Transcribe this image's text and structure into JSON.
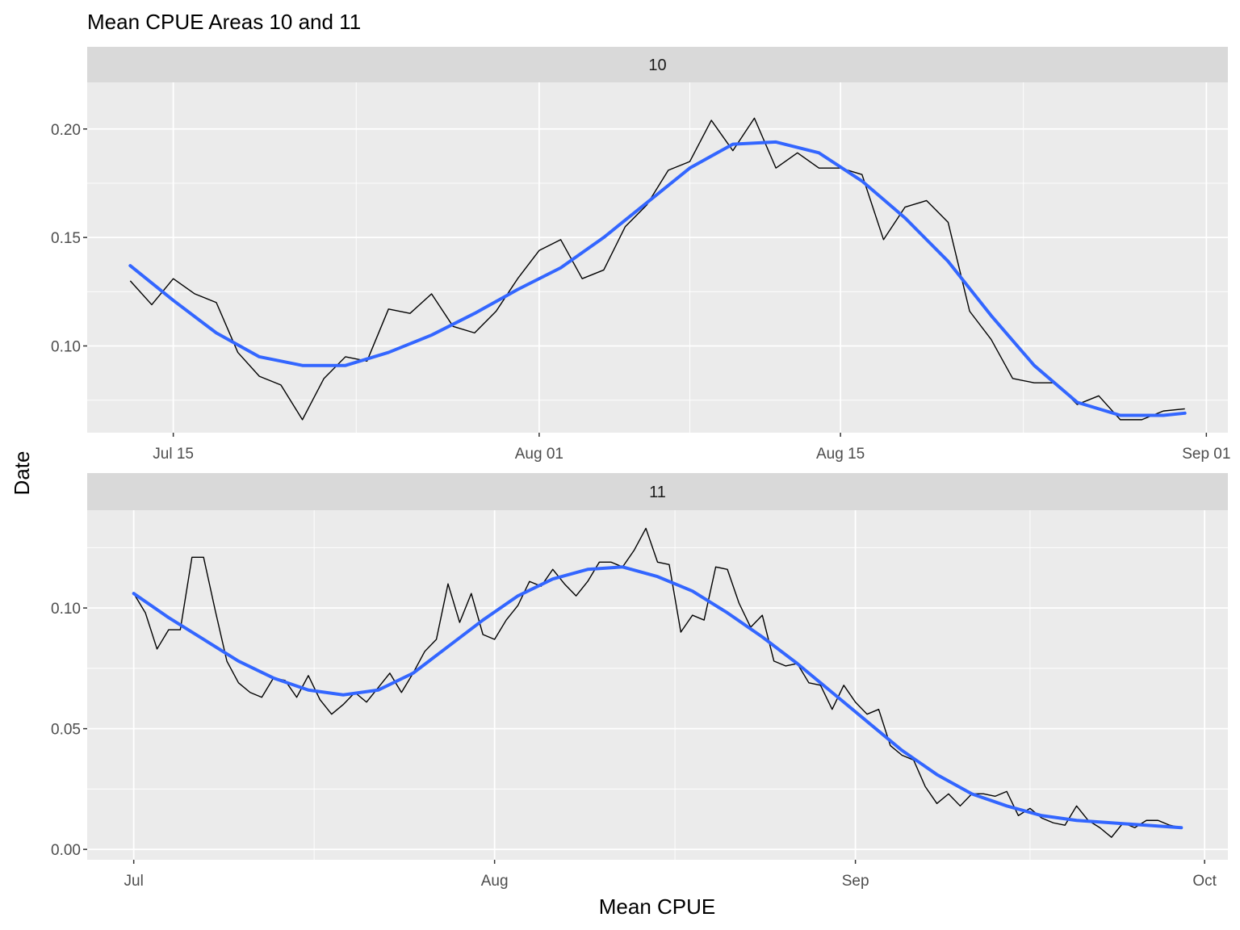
{
  "chart_data": {
    "type": "line",
    "title": "Mean CPUE Areas 10 and 11",
    "xlabel": "Mean CPUE",
    "ylabel": "Date",
    "grid": true,
    "colors": {
      "panel_bg": "#ebebeb",
      "strip_bg": "#d9d9d9",
      "grid": "#ffffff",
      "raw_line": "#000000",
      "smooth_line": "#3366ff"
    },
    "panels": [
      {
        "label": "10",
        "xlim": [
          "2019-07-11",
          "2019-09-02"
        ],
        "ylim": [
          0.06,
          0.2215
        ],
        "xticks": [
          {
            "date": "2019-07-15",
            "label": "Jul 15"
          },
          {
            "date": "2019-08-01",
            "label": "Aug 01"
          },
          {
            "date": "2019-08-15",
            "label": "Aug 15"
          },
          {
            "date": "2019-09-01",
            "label": "Sep 01"
          }
        ],
        "yticks": [
          {
            "value": 0.1,
            "label": "0.10"
          },
          {
            "value": 0.15,
            "label": "0.15"
          },
          {
            "value": 0.2,
            "label": "0.20"
          }
        ],
        "series": [
          {
            "role": "raw",
            "points": [
              [
                "2019-07-13",
                0.13
              ],
              [
                "2019-07-14",
                0.119
              ],
              [
                "2019-07-15",
                0.131
              ],
              [
                "2019-07-16",
                0.124
              ],
              [
                "2019-07-17",
                0.12
              ],
              [
                "2019-07-18",
                0.097
              ],
              [
                "2019-07-19",
                0.086
              ],
              [
                "2019-07-20",
                0.082
              ],
              [
                "2019-07-21",
                0.066
              ],
              [
                "2019-07-22",
                0.085
              ],
              [
                "2019-07-23",
                0.095
              ],
              [
                "2019-07-24",
                0.093
              ],
              [
                "2019-07-25",
                0.117
              ],
              [
                "2019-07-26",
                0.115
              ],
              [
                "2019-07-27",
                0.124
              ],
              [
                "2019-07-28",
                0.109
              ],
              [
                "2019-07-29",
                0.106
              ],
              [
                "2019-07-30",
                0.116
              ],
              [
                "2019-07-31",
                0.131
              ],
              [
                "2019-08-01",
                0.144
              ],
              [
                "2019-08-02",
                0.149
              ],
              [
                "2019-08-03",
                0.131
              ],
              [
                "2019-08-04",
                0.135
              ],
              [
                "2019-08-05",
                0.155
              ],
              [
                "2019-08-06",
                0.165
              ],
              [
                "2019-08-07",
                0.181
              ],
              [
                "2019-08-08",
                0.185
              ],
              [
                "2019-08-09",
                0.204
              ],
              [
                "2019-08-10",
                0.19
              ],
              [
                "2019-08-11",
                0.205
              ],
              [
                "2019-08-12",
                0.182
              ],
              [
                "2019-08-13",
                0.189
              ],
              [
                "2019-08-14",
                0.182
              ],
              [
                "2019-08-15",
                0.182
              ],
              [
                "2019-08-16",
                0.179
              ],
              [
                "2019-08-17",
                0.149
              ],
              [
                "2019-08-18",
                0.164
              ],
              [
                "2019-08-19",
                0.167
              ],
              [
                "2019-08-20",
                0.157
              ],
              [
                "2019-08-21",
                0.116
              ],
              [
                "2019-08-22",
                0.103
              ],
              [
                "2019-08-23",
                0.085
              ],
              [
                "2019-08-24",
                0.083
              ],
              [
                "2019-08-25",
                0.083
              ],
              [
                "2019-08-26",
                0.073
              ],
              [
                "2019-08-27",
                0.077
              ],
              [
                "2019-08-28",
                0.066
              ],
              [
                "2019-08-29",
                0.066
              ],
              [
                "2019-08-30",
                0.07
              ],
              [
                "2019-08-31",
                0.071
              ]
            ]
          },
          {
            "role": "smooth",
            "points": [
              [
                "2019-07-13",
                0.137
              ],
              [
                "2019-07-15",
                0.121
              ],
              [
                "2019-07-17",
                0.106
              ],
              [
                "2019-07-19",
                0.095
              ],
              [
                "2019-07-21",
                0.091
              ],
              [
                "2019-07-23",
                0.091
              ],
              [
                "2019-07-25",
                0.097
              ],
              [
                "2019-07-27",
                0.105
              ],
              [
                "2019-07-29",
                0.115
              ],
              [
                "2019-07-31",
                0.126
              ],
              [
                "2019-08-02",
                0.136
              ],
              [
                "2019-08-04",
                0.15
              ],
              [
                "2019-08-06",
                0.166
              ],
              [
                "2019-08-08",
                0.182
              ],
              [
                "2019-08-10",
                0.193
              ],
              [
                "2019-08-12",
                0.194
              ],
              [
                "2019-08-14",
                0.189
              ],
              [
                "2019-08-16",
                0.176
              ],
              [
                "2019-08-18",
                0.159
              ],
              [
                "2019-08-20",
                0.139
              ],
              [
                "2019-08-22",
                0.114
              ],
              [
                "2019-08-24",
                0.091
              ],
              [
                "2019-08-26",
                0.074
              ],
              [
                "2019-08-28",
                0.068
              ],
              [
                "2019-08-30",
                0.068
              ],
              [
                "2019-08-31",
                0.069
              ]
            ]
          }
        ]
      },
      {
        "label": "11",
        "xlim": [
          "2019-06-27",
          "2019-10-03"
        ],
        "ylim": [
          -0.0043,
          0.1405
        ],
        "xticks": [
          {
            "date": "2019-07-01",
            "label": "Jul"
          },
          {
            "date": "2019-08-01",
            "label": "Aug"
          },
          {
            "date": "2019-09-01",
            "label": "Sep"
          },
          {
            "date": "2019-10-01",
            "label": "Oct"
          }
        ],
        "yticks": [
          {
            "value": 0.0,
            "label": "0.00"
          },
          {
            "value": 0.05,
            "label": "0.05"
          },
          {
            "value": 0.1,
            "label": "0.10"
          }
        ],
        "series": [
          {
            "role": "raw",
            "points": [
              [
                "2019-07-01",
                0.106
              ],
              [
                "2019-07-02",
                0.098
              ],
              [
                "2019-07-03",
                0.083
              ],
              [
                "2019-07-04",
                0.091
              ],
              [
                "2019-07-05",
                0.091
              ],
              [
                "2019-07-06",
                0.121
              ],
              [
                "2019-07-07",
                0.121
              ],
              [
                "2019-07-08",
                0.099
              ],
              [
                "2019-07-09",
                0.078
              ],
              [
                "2019-07-10",
                0.069
              ],
              [
                "2019-07-11",
                0.065
              ],
              [
                "2019-07-12",
                0.063
              ],
              [
                "2019-07-13",
                0.071
              ],
              [
                "2019-07-14",
                0.07
              ],
              [
                "2019-07-15",
                0.063
              ],
              [
                "2019-07-16",
                0.072
              ],
              [
                "2019-07-17",
                0.062
              ],
              [
                "2019-07-18",
                0.056
              ],
              [
                "2019-07-19",
                0.06
              ],
              [
                "2019-07-20",
                0.065
              ],
              [
                "2019-07-21",
                0.061
              ],
              [
                "2019-07-22",
                0.067
              ],
              [
                "2019-07-23",
                0.073
              ],
              [
                "2019-07-24",
                0.065
              ],
              [
                "2019-07-25",
                0.073
              ],
              [
                "2019-07-26",
                0.082
              ],
              [
                "2019-07-27",
                0.087
              ],
              [
                "2019-07-28",
                0.11
              ],
              [
                "2019-07-29",
                0.094
              ],
              [
                "2019-07-30",
                0.106
              ],
              [
                "2019-07-31",
                0.089
              ],
              [
                "2019-08-01",
                0.087
              ],
              [
                "2019-08-02",
                0.095
              ],
              [
                "2019-08-03",
                0.101
              ],
              [
                "2019-08-04",
                0.111
              ],
              [
                "2019-08-05",
                0.109
              ],
              [
                "2019-08-06",
                0.116
              ],
              [
                "2019-08-07",
                0.11
              ],
              [
                "2019-08-08",
                0.105
              ],
              [
                "2019-08-09",
                0.111
              ],
              [
                "2019-08-10",
                0.119
              ],
              [
                "2019-08-11",
                0.119
              ],
              [
                "2019-08-12",
                0.117
              ],
              [
                "2019-08-13",
                0.124
              ],
              [
                "2019-08-14",
                0.133
              ],
              [
                "2019-08-15",
                0.119
              ],
              [
                "2019-08-16",
                0.118
              ],
              [
                "2019-08-17",
                0.09
              ],
              [
                "2019-08-18",
                0.097
              ],
              [
                "2019-08-19",
                0.095
              ],
              [
                "2019-08-20",
                0.117
              ],
              [
                "2019-08-21",
                0.116
              ],
              [
                "2019-08-22",
                0.102
              ],
              [
                "2019-08-23",
                0.092
              ],
              [
                "2019-08-24",
                0.097
              ],
              [
                "2019-08-25",
                0.078
              ],
              [
                "2019-08-26",
                0.076
              ],
              [
                "2019-08-27",
                0.077
              ],
              [
                "2019-08-28",
                0.069
              ],
              [
                "2019-08-29",
                0.068
              ],
              [
                "2019-08-30",
                0.058
              ],
              [
                "2019-08-31",
                0.068
              ],
              [
                "2019-09-01",
                0.061
              ],
              [
                "2019-09-02",
                0.056
              ],
              [
                "2019-09-03",
                0.058
              ],
              [
                "2019-09-04",
                0.043
              ],
              [
                "2019-09-05",
                0.039
              ],
              [
                "2019-09-06",
                0.037
              ],
              [
                "2019-09-07",
                0.026
              ],
              [
                "2019-09-08",
                0.019
              ],
              [
                "2019-09-09",
                0.023
              ],
              [
                "2019-09-10",
                0.018
              ],
              [
                "2019-09-11",
                0.023
              ],
              [
                "2019-09-12",
                0.023
              ],
              [
                "2019-09-13",
                0.022
              ],
              [
                "2019-09-14",
                0.024
              ],
              [
                "2019-09-15",
                0.014
              ],
              [
                "2019-09-16",
                0.017
              ],
              [
                "2019-09-17",
                0.013
              ],
              [
                "2019-09-18",
                0.011
              ],
              [
                "2019-09-19",
                0.01
              ],
              [
                "2019-09-20",
                0.018
              ],
              [
                "2019-09-21",
                0.012
              ],
              [
                "2019-09-22",
                0.009
              ],
              [
                "2019-09-23",
                0.005
              ],
              [
                "2019-09-24",
                0.011
              ],
              [
                "2019-09-25",
                0.009
              ],
              [
                "2019-09-26",
                0.012
              ],
              [
                "2019-09-27",
                0.012
              ],
              [
                "2019-09-28",
                0.01
              ],
              [
                "2019-09-29",
                0.009
              ]
            ]
          },
          {
            "role": "smooth",
            "points": [
              [
                "2019-07-01",
                0.106
              ],
              [
                "2019-07-04",
                0.096
              ],
              [
                "2019-07-07",
                0.087
              ],
              [
                "2019-07-10",
                0.078
              ],
              [
                "2019-07-13",
                0.071
              ],
              [
                "2019-07-16",
                0.066
              ],
              [
                "2019-07-19",
                0.064
              ],
              [
                "2019-07-22",
                0.066
              ],
              [
                "2019-07-25",
                0.073
              ],
              [
                "2019-07-28",
                0.084
              ],
              [
                "2019-07-31",
                0.095
              ],
              [
                "2019-08-03",
                0.105
              ],
              [
                "2019-08-06",
                0.112
              ],
              [
                "2019-08-09",
                0.116
              ],
              [
                "2019-08-12",
                0.117
              ],
              [
                "2019-08-15",
                0.113
              ],
              [
                "2019-08-18",
                0.107
              ],
              [
                "2019-08-21",
                0.098
              ],
              [
                "2019-08-24",
                0.088
              ],
              [
                "2019-08-27",
                0.077
              ],
              [
                "2019-08-30",
                0.065
              ],
              [
                "2019-09-02",
                0.053
              ],
              [
                "2019-09-05",
                0.041
              ],
              [
                "2019-09-08",
                0.031
              ],
              [
                "2019-09-11",
                0.023
              ],
              [
                "2019-09-14",
                0.018
              ],
              [
                "2019-09-17",
                0.014
              ],
              [
                "2019-09-20",
                0.012
              ],
              [
                "2019-09-23",
                0.011
              ],
              [
                "2019-09-26",
                0.01
              ],
              [
                "2019-09-29",
                0.009
              ]
            ]
          }
        ]
      }
    ]
  }
}
